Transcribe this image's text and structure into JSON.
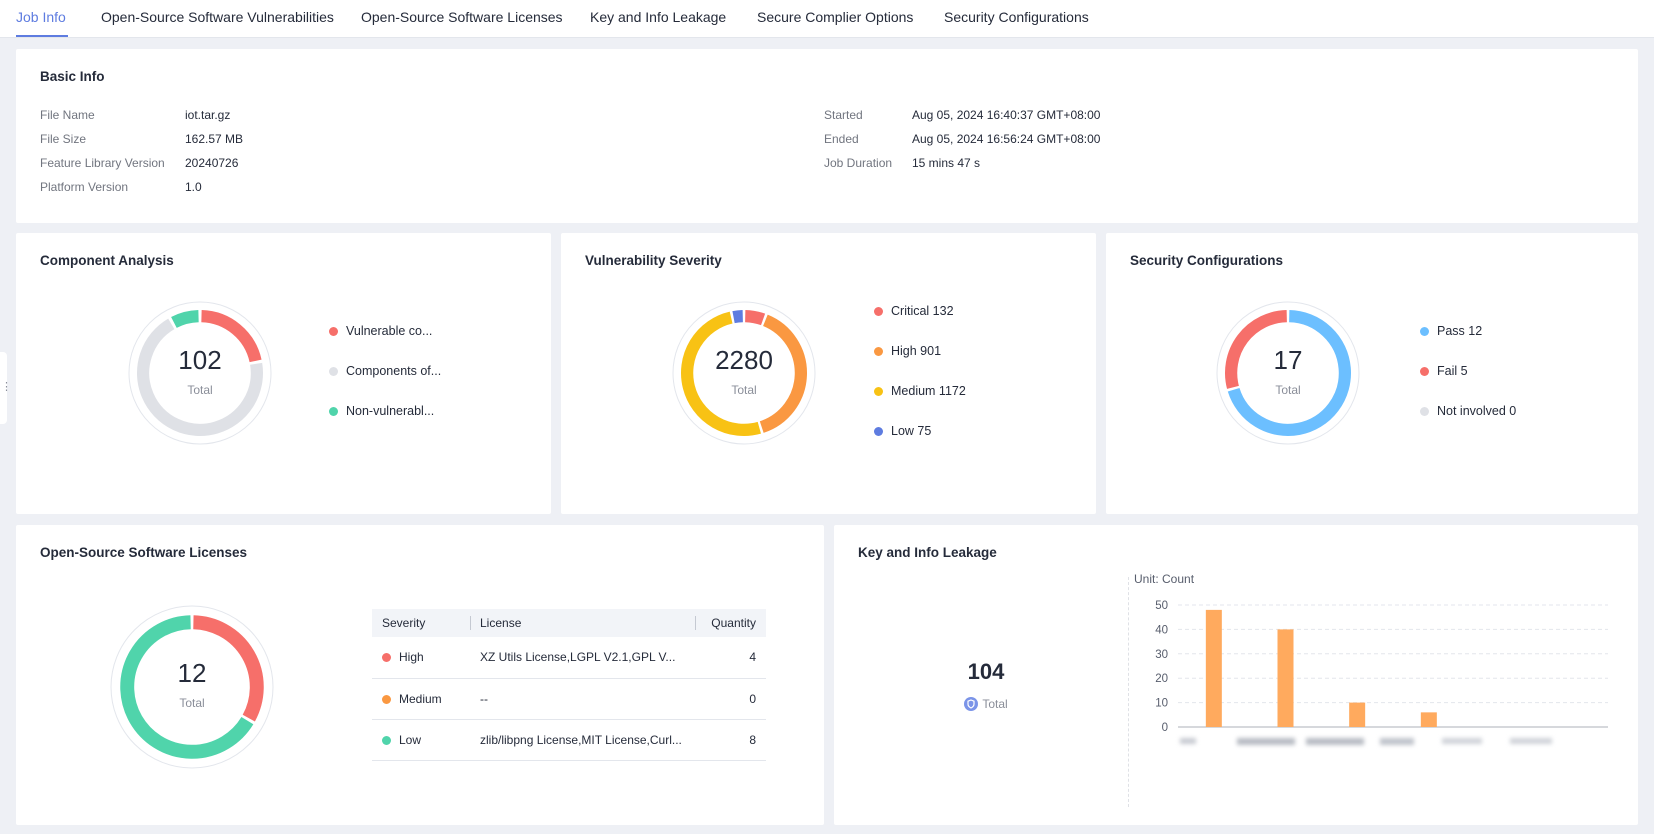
{
  "tabs": [
    {
      "label": "Job Info"
    },
    {
      "label": "Open-Source Software Vulnerabilities"
    },
    {
      "label": "Open-Source Software Licenses"
    },
    {
      "label": "Key and Info Leakage"
    },
    {
      "label": "Secure Complier Options"
    },
    {
      "label": "Security Configurations"
    }
  ],
  "basic_info": {
    "title": "Basic Info",
    "left": [
      {
        "label": "File Name",
        "value": "iot.tar.gz"
      },
      {
        "label": "File Size",
        "value": "162.57 MB"
      },
      {
        "label": "Feature Library Version",
        "value": "20240726"
      },
      {
        "label": "Platform Version",
        "value": "1.0"
      }
    ],
    "right": [
      {
        "label": "Started",
        "value": "Aug 05, 2024 16:40:37 GMT+08:00"
      },
      {
        "label": "Ended",
        "value": "Aug 05, 2024 16:56:24 GMT+08:00"
      },
      {
        "label": "Job Duration",
        "value": "15 mins 47 s"
      }
    ]
  },
  "component_analysis": {
    "title": "Component Analysis",
    "total": "102",
    "total_label": "Total",
    "segments": [
      {
        "label": "Vulnerable co...",
        "fraction": 0.22,
        "color": "#f66f6a"
      },
      {
        "label": "Components of...",
        "fraction": 0.7,
        "color": "#dfe1e6"
      },
      {
        "label": "Non-vulnerabl...",
        "fraction": 0.08,
        "color": "#50d4ab"
      }
    ]
  },
  "vulnerability_severity": {
    "title": "Vulnerability Severity",
    "total": "2280",
    "total_label": "Total",
    "segments": [
      {
        "label": "Critical 132",
        "value": 132,
        "color": "#f66f6a"
      },
      {
        "label": "High 901",
        "value": 901,
        "color": "#fa9841"
      },
      {
        "label": "Medium 1172",
        "value": 1172,
        "color": "#f8c214"
      },
      {
        "label": "Low 75",
        "value": 75,
        "color": "#5e7ce0"
      }
    ]
  },
  "security_configurations": {
    "title": "Security Configurations",
    "total": "17",
    "total_label": "Total",
    "segments": [
      {
        "label": "Pass 12",
        "value": 12,
        "color": "#6cbfff"
      },
      {
        "label": "Fail 5",
        "value": 5,
        "color": "#f66f6a"
      },
      {
        "label": "Not involved 0",
        "value": 0,
        "color": "#dfe1e6"
      }
    ]
  },
  "licenses": {
    "title": "Open-Source Software Licenses",
    "total": "12",
    "total_label": "Total",
    "segments": [
      {
        "value": 4,
        "color": "#f66f6a"
      },
      {
        "value": 0,
        "color": "#fa9841"
      },
      {
        "value": 8,
        "color": "#50d4ab"
      }
    ],
    "columns": [
      "Severity",
      "License",
      "Quantity"
    ],
    "rows": [
      {
        "severity": "High",
        "color": "#f66f6a",
        "license": "XZ Utils License,LGPL V2.1,GPL V...",
        "quantity": "4"
      },
      {
        "severity": "Medium",
        "color": "#fa9841",
        "license": "--",
        "quantity": "0"
      },
      {
        "severity": "Low",
        "color": "#50d4ab",
        "license": "zlib/libpng License,MIT License,Curl...",
        "quantity": "8"
      }
    ]
  },
  "leakage": {
    "title": "Key and Info Leakage",
    "total": "104",
    "total_label": "Total",
    "icon": "shield-icon",
    "chart_data": {
      "type": "bar",
      "title": "",
      "unit_label": "Unit: Count",
      "xlabel": "",
      "ylabel": "",
      "ylim": [
        0,
        50
      ],
      "yticks": [
        0,
        10,
        20,
        30,
        40,
        50
      ],
      "categories": [
        "",
        "",
        "",
        "",
        "",
        ""
      ],
      "values": [
        48,
        40,
        10,
        6,
        0,
        0
      ],
      "bar_color": "#ffaa5e",
      "grid": true
    }
  }
}
